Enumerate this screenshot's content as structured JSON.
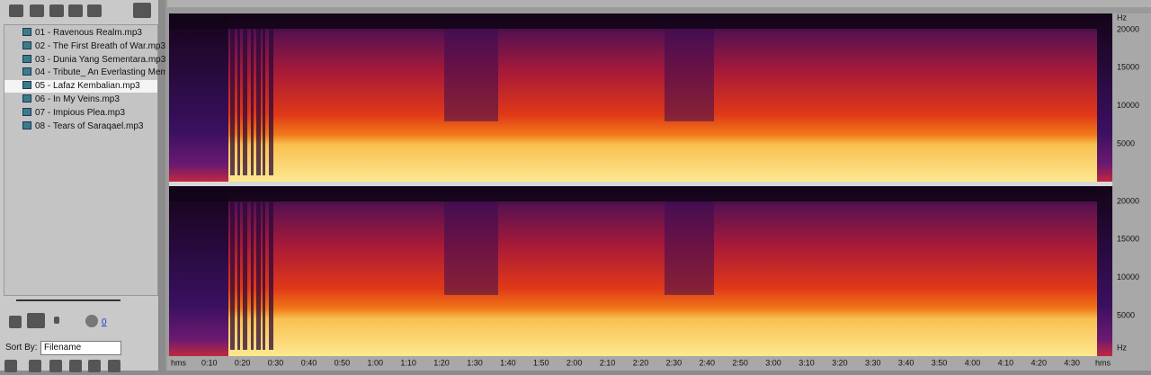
{
  "file_list": {
    "items": [
      "01 - Ravenous Realm.mp3",
      "02 - The First Breath of War.mp3",
      "03 - Dunia Yang Sementara.mp3",
      "04 - Tribute_ An Everlasting Mem",
      "05 - Lafaz Kembalian.mp3",
      "06 - In My Veins.mp3",
      "07 - Impious Plea.mp3",
      "08 - Tears of Saraqael.mp3"
    ]
  },
  "playback": {
    "counter": "0"
  },
  "sort": {
    "label": "Sort By:",
    "value": "Filename"
  },
  "spectrogram": {
    "top_freq_labels": [
      "Hz",
      "20000",
      "15000",
      "10000",
      "5000"
    ],
    "bottom_freq_labels": [
      "20000",
      "15000",
      "10000",
      "5000",
      "Hz"
    ],
    "time_labels": [
      "hms",
      "0:10",
      "0:20",
      "0:30",
      "0:40",
      "0:50",
      "1:00",
      "1:10",
      "1:20",
      "1:30",
      "1:40",
      "1:50",
      "2:00",
      "2:10",
      "2:20",
      "2:30",
      "2:40",
      "2:50",
      "3:00",
      "3:10",
      "3:20",
      "3:30",
      "3:40",
      "3:50",
      "4:00",
      "4:10",
      "4:20",
      "4:30",
      "hms"
    ]
  }
}
